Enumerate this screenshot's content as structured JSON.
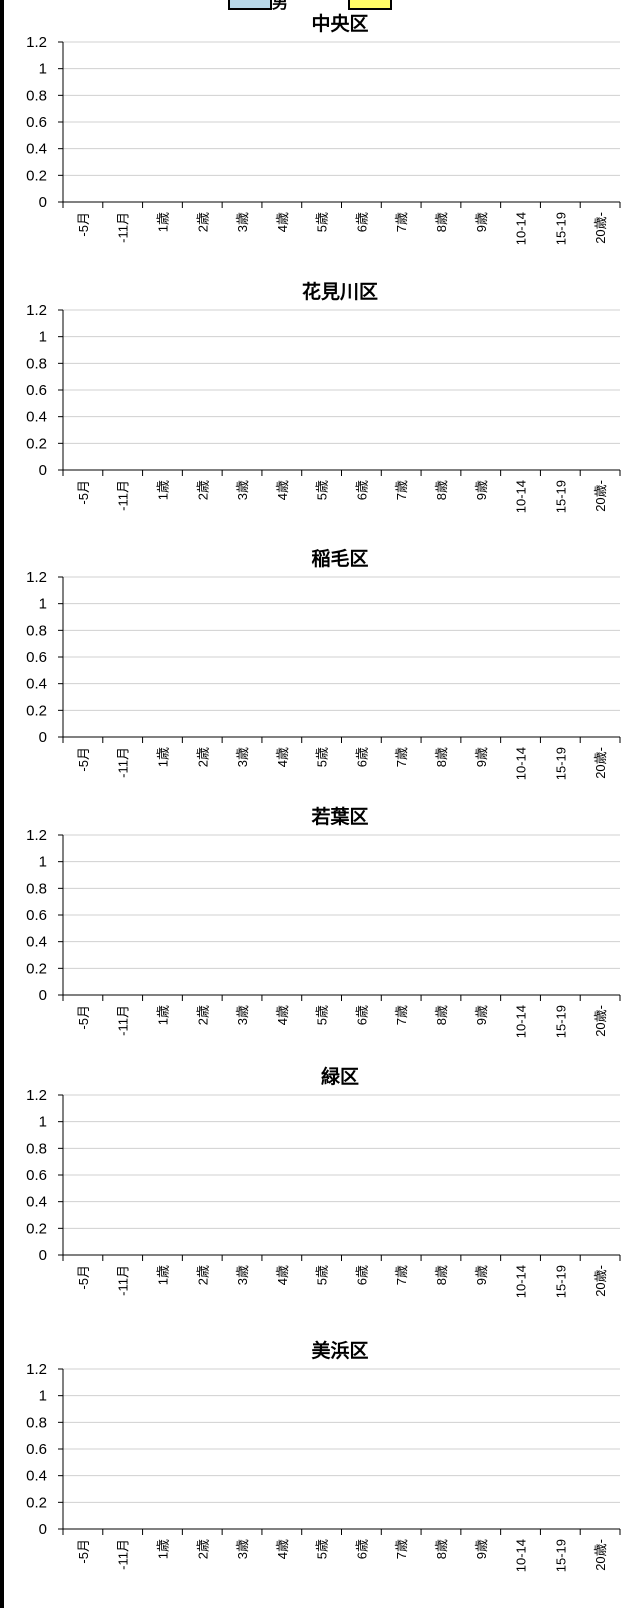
{
  "legend": {
    "male_color": "#b8d8e8",
    "female_color": "#fffb66",
    "separator_text": "男"
  },
  "categories": [
    "-5月",
    "-11月",
    "1歳",
    "2歳",
    "3歳",
    "4歳",
    "5歳",
    "6歳",
    "7歳",
    "8歳",
    "9歳",
    "10-14",
    "15-19",
    "20歳-"
  ],
  "y_ticks": [
    "0",
    "0.2",
    "0.4",
    "0.6",
    "0.8",
    "1",
    "1.2"
  ],
  "chart_data": [
    {
      "type": "bar",
      "title": "中央区",
      "categories": [
        "-5月",
        "-11月",
        "1歳",
        "2歳",
        "3歳",
        "4歳",
        "5歳",
        "6歳",
        "7歳",
        "8歳",
        "9歳",
        "10-14",
        "15-19",
        "20歳-"
      ],
      "values": [
        0,
        0,
        0,
        0,
        0,
        0,
        0,
        0,
        0,
        0,
        0,
        0,
        0,
        0
      ],
      "ylim": [
        0,
        1.2
      ],
      "grid": true
    },
    {
      "type": "bar",
      "title": "花見川区",
      "categories": [
        "-5月",
        "-11月",
        "1歳",
        "2歳",
        "3歳",
        "4歳",
        "5歳",
        "6歳",
        "7歳",
        "8歳",
        "9歳",
        "10-14",
        "15-19",
        "20歳-"
      ],
      "values": [
        0,
        0,
        0,
        0,
        0,
        0,
        0,
        0,
        0,
        0,
        0,
        0,
        0,
        0
      ],
      "ylim": [
        0,
        1.2
      ],
      "grid": true
    },
    {
      "type": "bar",
      "title": "稲毛区",
      "categories": [
        "-5月",
        "-11月",
        "1歳",
        "2歳",
        "3歳",
        "4歳",
        "5歳",
        "6歳",
        "7歳",
        "8歳",
        "9歳",
        "10-14",
        "15-19",
        "20歳-"
      ],
      "values": [
        0,
        0,
        0,
        0,
        0,
        0,
        0,
        0,
        0,
        0,
        0,
        0,
        0,
        0
      ],
      "ylim": [
        0,
        1.2
      ],
      "grid": true
    },
    {
      "type": "bar",
      "title": "若葉区",
      "categories": [
        "-5月",
        "-11月",
        "1歳",
        "2歳",
        "3歳",
        "4歳",
        "5歳",
        "6歳",
        "7歳",
        "8歳",
        "9歳",
        "10-14",
        "15-19",
        "20歳-"
      ],
      "values": [
        0,
        0,
        0,
        0,
        0,
        0,
        0,
        0,
        0,
        0,
        0,
        0,
        0,
        0
      ],
      "ylim": [
        0,
        1.2
      ],
      "grid": true
    },
    {
      "type": "bar",
      "title": "緑区",
      "categories": [
        "-5月",
        "-11月",
        "1歳",
        "2歳",
        "3歳",
        "4歳",
        "5歳",
        "6歳",
        "7歳",
        "8歳",
        "9歳",
        "10-14",
        "15-19",
        "20歳-"
      ],
      "values": [
        0,
        0,
        0,
        0,
        0,
        0,
        0,
        0,
        0,
        0,
        0,
        0,
        0,
        0
      ],
      "ylim": [
        0,
        1.2
      ],
      "grid": true
    },
    {
      "type": "bar",
      "title": "美浜区",
      "categories": [
        "-5月",
        "-11月",
        "1歳",
        "2歳",
        "3歳",
        "4歳",
        "5歳",
        "6歳",
        "7歳",
        "8歳",
        "9歳",
        "10-14",
        "15-19",
        "20歳-"
      ],
      "values": [
        0,
        0,
        0,
        0,
        0,
        0,
        0,
        0,
        0,
        0,
        0,
        0,
        0,
        0
      ],
      "ylim": [
        0,
        1.2
      ],
      "grid": true
    }
  ]
}
